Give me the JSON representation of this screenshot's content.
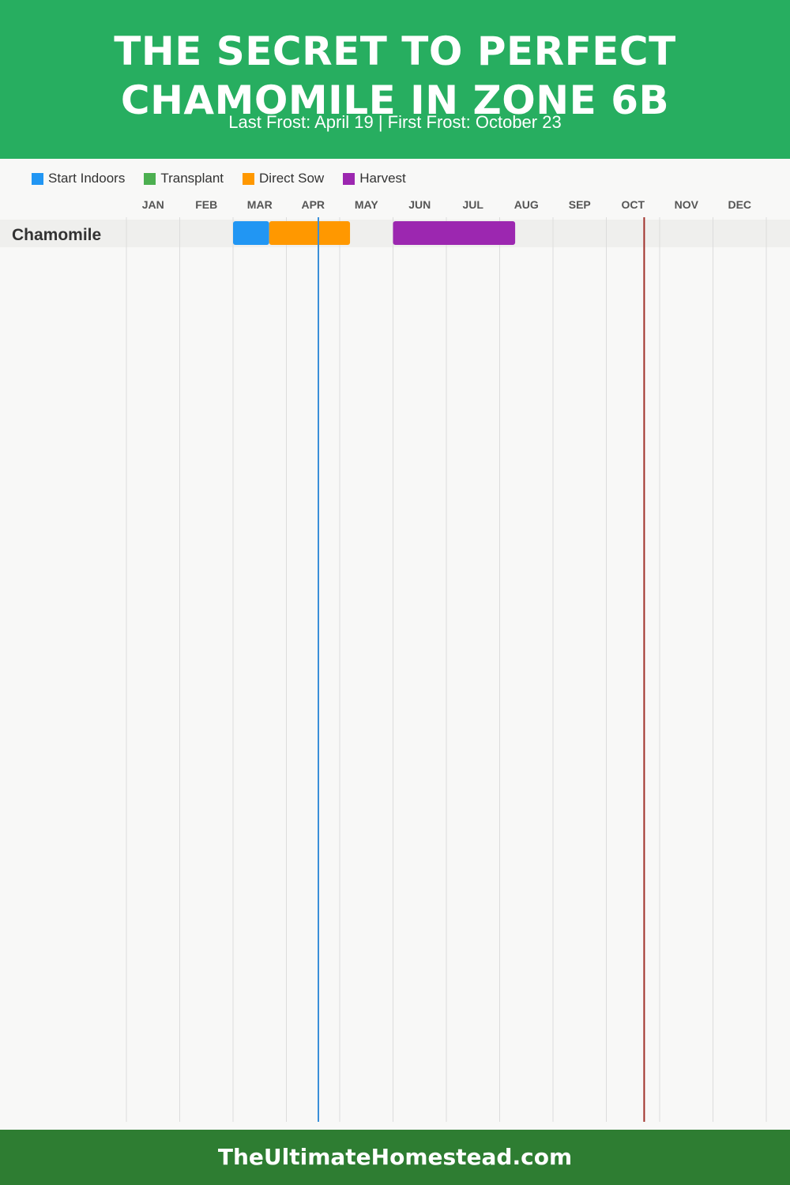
{
  "header": {
    "title": "THE SECRET TO PERFECT\nCHAMOMILE IN ZONE 6B",
    "subtitle": "Last Frost: April 19 | First Frost: October 23"
  },
  "legend": [
    {
      "label": "Start Indoors",
      "color": "#2196f3"
    },
    {
      "label": "Transplant",
      "color": "#4caf50"
    },
    {
      "label": "Direct Sow",
      "color": "#ff9800"
    },
    {
      "label": "Harvest",
      "color": "#9c27b0"
    }
  ],
  "chart_data": {
    "type": "gantt",
    "categories": [
      "JAN",
      "FEB",
      "MAR",
      "APR",
      "MAY",
      "JUN",
      "JUL",
      "AUG",
      "SEP",
      "OCT",
      "NOV",
      "DEC"
    ],
    "rows": [
      {
        "name": "Chamomile",
        "bars": [
          {
            "phase": "Start Indoors",
            "start": "2024-03-01",
            "end": "2024-03-22",
            "color": "#2196f3"
          },
          {
            "phase": "Direct Sow",
            "start": "2024-03-22",
            "end": "2024-05-07",
            "color": "#ff9800"
          },
          {
            "phase": "Harvest",
            "start": "2024-06-01",
            "end": "2024-08-10",
            "color": "#9c27b0"
          }
        ]
      }
    ],
    "markers": [
      {
        "name": "Last Frost",
        "date": "2024-04-19",
        "color": "#3a8fd9"
      },
      {
        "name": "First Frost",
        "date": "2024-10-23",
        "color": "#a0302a"
      }
    ],
    "grid": true,
    "legend_position": "top-left"
  },
  "footer": {
    "site": "TheUltimateHomestead.com"
  }
}
